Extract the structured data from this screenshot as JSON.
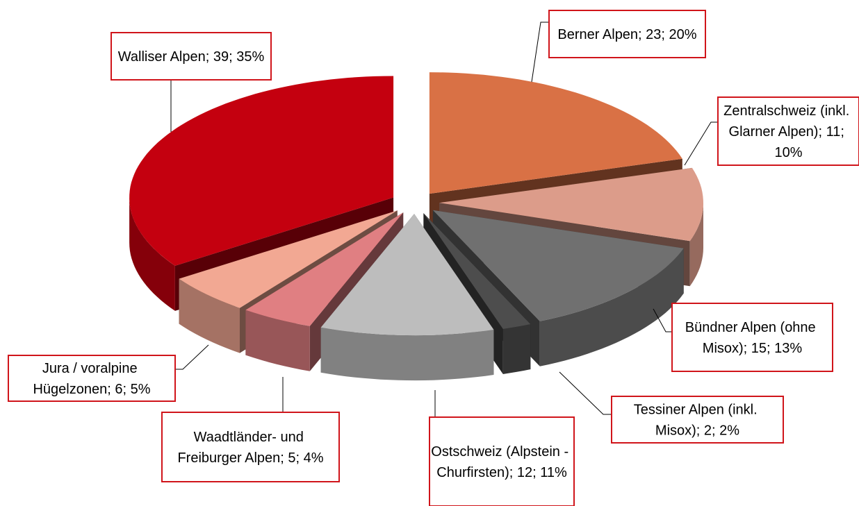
{
  "chart_data": {
    "type": "pie3d",
    "values": [
      23,
      11,
      15,
      2,
      12,
      5,
      6,
      39
    ],
    "value_labels": [
      "Berner Alpen; 23; 20%",
      "Zentralschweiz (inkl. Glarner Alpen); 11; 10%",
      "Bündner Alpen (ohne Misox); 15; 13%",
      "Tessiner Alpen (inkl. Misox); 2; 2%",
      "Ostschweiz (Alpstein - Churfirsten); 12; 11%",
      "Waadtländer- und Freiburger Alpen; 5; 4%",
      "Jura / voralpine Hügelzonen; 6; 5%",
      "Walliser Alpen; 39; 35%"
    ],
    "colors": [
      "#d97145",
      "#dc9c8a",
      "#707070",
      "#4d4d4d",
      "#bdbdbd",
      "#e07f82",
      "#f2a893",
      "#c4000f"
    ]
  }
}
